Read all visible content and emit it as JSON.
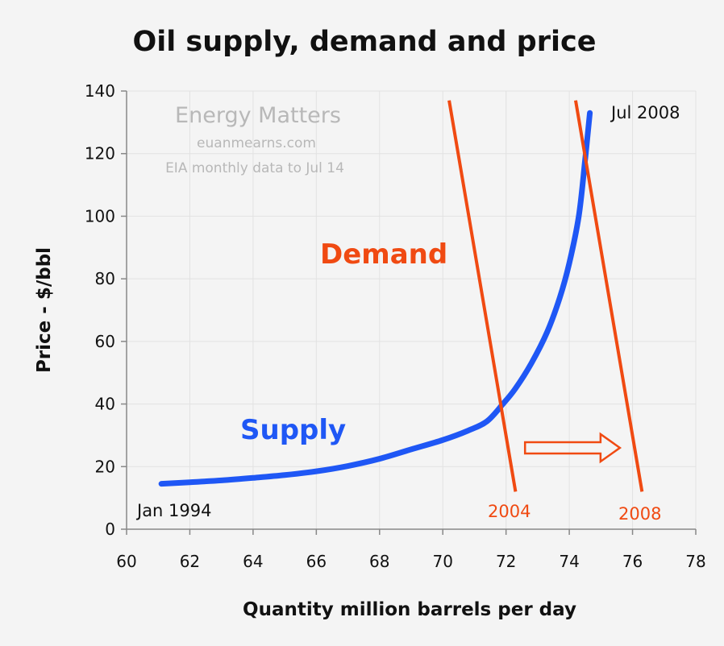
{
  "chart_data": {
    "type": "line",
    "title": "Oil supply, demand and price",
    "xlabel": "Quantity million barrels per day",
    "ylabel": "Price - $/bbl",
    "xlim": [
      60,
      78
    ],
    "ylim": [
      0,
      140
    ],
    "x_ticks": [
      60,
      62,
      64,
      66,
      68,
      70,
      72,
      74,
      76,
      78
    ],
    "y_ticks": [
      0,
      20,
      40,
      60,
      80,
      100,
      120,
      140
    ],
    "grid": true,
    "watermark": [
      "Energy Matters",
      "euanmearns.com",
      "EIA monthly data to Jul 14"
    ],
    "series": [
      {
        "name": "Supply",
        "color": "#1f57f5",
        "points": [
          [
            61.1,
            14.5
          ],
          [
            62,
            15
          ],
          [
            63,
            15.6
          ],
          [
            64,
            16.4
          ],
          [
            65,
            17.3
          ],
          [
            66,
            18.5
          ],
          [
            67,
            20.2
          ],
          [
            68,
            22.5
          ],
          [
            69,
            25.5
          ],
          [
            70,
            28.5
          ],
          [
            70.8,
            31.5
          ],
          [
            71.4,
            34.5
          ],
          [
            71.9,
            40
          ],
          [
            72.3,
            45
          ],
          [
            72.8,
            53
          ],
          [
            73.3,
            63
          ],
          [
            73.7,
            74
          ],
          [
            74.0,
            85
          ],
          [
            74.3,
            100
          ],
          [
            74.5,
            118
          ],
          [
            74.65,
            133
          ]
        ],
        "annotations": [
          {
            "text": "Jan 1994",
            "x": 61.1,
            "y": 14.5
          },
          {
            "text": "Jul 2008",
            "x": 74.65,
            "y": 133
          }
        ]
      },
      {
        "name": "2004",
        "color": "#f04a12",
        "points": [
          [
            70.2,
            137
          ],
          [
            72.3,
            12
          ]
        ]
      },
      {
        "name": "2008",
        "color": "#f04a12",
        "points": [
          [
            74.2,
            137
          ],
          [
            76.3,
            12
          ]
        ]
      }
    ],
    "labels": {
      "demand": "Demand",
      "supply": "Supply"
    },
    "arrow": {
      "from": [
        72.6,
        26
      ],
      "to": [
        75.6,
        26
      ],
      "color": "#f04a12"
    }
  }
}
